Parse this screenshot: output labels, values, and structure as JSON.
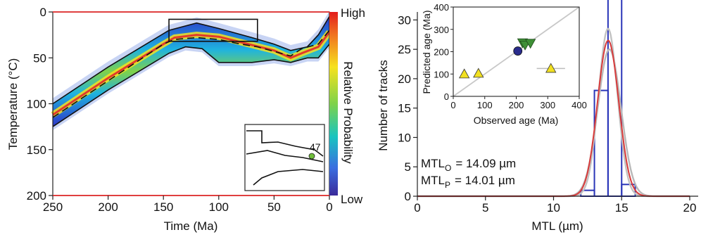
{
  "chart_data": [
    {
      "type": "area",
      "panel": "thermal-history",
      "xlabel": "Time (Ma)",
      "ylabel": "Temperature (°C)",
      "xlim": [
        250,
        0
      ],
      "ylim": [
        200,
        0
      ],
      "x_ticks": [
        250,
        200,
        150,
        100,
        50,
        0
      ],
      "y_ticks": [
        0,
        50,
        100,
        150,
        200
      ],
      "colorbar": {
        "label": "Relative Probability",
        "high": "High",
        "low": "Low"
      },
      "envelope_upper": {
        "x": [
          250,
          200,
          145,
          120,
          100,
          70,
          50,
          35,
          20,
          10,
          0
        ],
        "y": [
          100,
          60,
          20,
          12,
          18,
          28,
          35,
          42,
          38,
          25,
          5
        ]
      },
      "envelope_lower": {
        "x": [
          250,
          200,
          145,
          130,
          115,
          100,
          70,
          50,
          35,
          20,
          10,
          0
        ],
        "y": [
          125,
          85,
          45,
          38,
          40,
          55,
          55,
          52,
          55,
          50,
          50,
          35
        ]
      },
      "best_fit": {
        "x": [
          250,
          200,
          150,
          140,
          120,
          100,
          80,
          65,
          50,
          35,
          25,
          10,
          0
        ],
        "y": [
          115,
          75,
          35,
          30,
          28,
          30,
          35,
          38,
          43,
          48,
          40,
          35,
          20
        ]
      },
      "expected": {
        "x": [
          250,
          200,
          150,
          140,
          120,
          100,
          70,
          50,
          35,
          25,
          10,
          0
        ],
        "y": [
          112,
          72,
          35,
          28,
          25,
          27,
          36,
          42,
          50,
          45,
          38,
          22
        ]
      },
      "constraint_box": {
        "x": [
          145,
          65
        ],
        "y": [
          8,
          32
        ]
      },
      "inset": {
        "label": "47"
      }
    },
    {
      "type": "bar",
      "panel": "track-length",
      "xlabel": "MTL (µm)",
      "ylabel": "Number of tracks",
      "xlim": [
        0,
        20
      ],
      "ylim": [
        0,
        31
      ],
      "x_ticks": [
        0,
        5,
        10,
        15,
        20
      ],
      "y_ticks": [
        0,
        5,
        10,
        15,
        20,
        25,
        30
      ],
      "bins": [
        12,
        13,
        14,
        15,
        16
      ],
      "counts": [
        1,
        18,
        35,
        2
      ],
      "mtl_observed": {
        "label": "MTL",
        "sub": "O",
        "value": "= 14.09 µm"
      },
      "mtl_predicted": {
        "label": "MTL",
        "sub": "P",
        "value": "= 14.01 µm"
      },
      "fit_curves": [
        {
          "color": "#d83a3a",
          "mean": 14.01,
          "sd": 0.78,
          "peak": 26.5
        },
        {
          "color": "#c2c2c2",
          "mean": 14.0,
          "sd": 0.7,
          "peak": 28.5
        },
        {
          "color": "#b8b8b8",
          "mean": 14.1,
          "sd": 0.85,
          "peak": 25
        }
      ]
    },
    {
      "type": "scatter",
      "panel": "age-inset",
      "xlabel": "Observed age (Ma)",
      "ylabel": "Predicted age (Ma)",
      "xlim": [
        0,
        400
      ],
      "ylim": [
        0,
        400
      ],
      "x_ticks": [
        0,
        100,
        200,
        300,
        400
      ],
      "y_ticks": [
        0,
        100,
        200,
        300,
        400
      ],
      "points": [
        {
          "x": 35,
          "y": 100,
          "marker": "triangle",
          "color": "#f2e020"
        },
        {
          "x": 80,
          "y": 103,
          "marker": "triangle",
          "color": "#f2e020"
        },
        {
          "x": 310,
          "y": 125,
          "marker": "triangle",
          "color": "#f2e020",
          "xerr": 45
        },
        {
          "x": 205,
          "y": 203,
          "marker": "circle",
          "color": "#2a2c8c"
        },
        {
          "x": 220,
          "y": 240,
          "marker": "triangle-down",
          "color": "#3e8f36"
        },
        {
          "x": 228,
          "y": 230,
          "marker": "triangle-down",
          "color": "#3e8f36"
        },
        {
          "x": 245,
          "y": 238,
          "marker": "triangle-down",
          "color": "#3e8f36"
        }
      ]
    }
  ]
}
